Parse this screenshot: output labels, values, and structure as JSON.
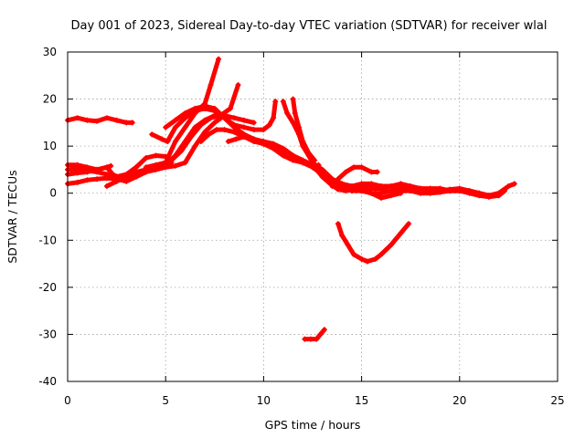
{
  "chart_data": {
    "type": "scatter",
    "title": "Day 001 of 2023, Sidereal Day-to-day VTEC variation (SDTVAR) for receiver wlal",
    "xlabel": "GPS time / hours",
    "ylabel": "SDTVAR / TECUs",
    "xlim": [
      0,
      25
    ],
    "ylim": [
      -40,
      30
    ],
    "xticks": [
      0,
      5,
      10,
      15,
      20,
      25
    ],
    "yticks": [
      -40,
      -30,
      -20,
      -10,
      0,
      10,
      20,
      30
    ],
    "grid": true,
    "legend": "none",
    "color": "#ff0000",
    "series": [
      {
        "name": "s01",
        "points": [
          [
            0.0,
            15.5
          ],
          [
            0.5,
            16.0
          ],
          [
            1.0,
            15.5
          ],
          [
            1.5,
            15.3
          ],
          [
            2.0,
            16.0
          ],
          [
            2.5,
            15.5
          ],
          [
            3.0,
            15.0
          ],
          [
            3.3,
            15.0
          ]
        ]
      },
      {
        "name": "s02",
        "points": [
          [
            0.0,
            6.0
          ],
          [
            0.5,
            6.0
          ],
          [
            1.0,
            5.5
          ],
          [
            1.5,
            5.0
          ],
          [
            2.0,
            5.5
          ],
          [
            2.3,
            4.0
          ],
          [
            2.8,
            3.0
          ],
          [
            3.3,
            3.5
          ],
          [
            3.8,
            4.5
          ],
          [
            4.3,
            5.5
          ],
          [
            4.8,
            6.0
          ],
          [
            5.3,
            6.5
          ]
        ]
      },
      {
        "name": "s03",
        "points": [
          [
            0.0,
            5.0
          ],
          [
            0.5,
            5.2
          ],
          [
            1.0,
            4.8
          ],
          [
            1.5,
            4.5
          ],
          [
            2.0,
            4.0
          ],
          [
            2.5,
            3.5
          ],
          [
            3.0,
            4.0
          ],
          [
            3.5,
            5.5
          ],
          [
            4.0,
            7.5
          ],
          [
            4.5,
            8.0
          ],
          [
            5.0,
            7.8
          ]
        ]
      },
      {
        "name": "s04",
        "points": [
          [
            0.0,
            4.0
          ],
          [
            0.5,
            4.3
          ],
          [
            1.0,
            4.5
          ],
          [
            1.5,
            5.0
          ],
          [
            2.0,
            5.5
          ],
          [
            2.2,
            5.8
          ]
        ]
      },
      {
        "name": "s05",
        "points": [
          [
            0.0,
            2.0
          ],
          [
            0.5,
            2.3
          ],
          [
            1.0,
            2.8
          ],
          [
            1.5,
            3.0
          ],
          [
            2.0,
            3.2
          ],
          [
            2.5,
            3.0
          ],
          [
            3.0,
            2.5
          ],
          [
            3.5,
            3.5
          ],
          [
            4.0,
            4.5
          ],
          [
            4.5,
            5.0
          ],
          [
            5.0,
            5.5
          ],
          [
            5.5,
            5.8
          ],
          [
            6.0,
            6.5
          ],
          [
            6.5,
            10.0
          ],
          [
            7.0,
            13.0
          ],
          [
            7.5,
            15.0
          ],
          [
            8.0,
            16.5
          ],
          [
            8.5,
            16.0
          ],
          [
            9.0,
            15.5
          ],
          [
            9.5,
            15.0
          ]
        ]
      },
      {
        "name": "s06",
        "points": [
          [
            2.0,
            1.5
          ],
          [
            2.5,
            2.5
          ],
          [
            3.0,
            3.5
          ],
          [
            3.5,
            4.5
          ],
          [
            4.0,
            5.0
          ],
          [
            4.5,
            5.3
          ],
          [
            5.0,
            6.0
          ],
          [
            5.5,
            8.0
          ],
          [
            6.0,
            11.0
          ],
          [
            6.5,
            14.0
          ],
          [
            7.0,
            15.5
          ],
          [
            7.5,
            16.5
          ]
        ]
      },
      {
        "name": "s07",
        "points": [
          [
            4.0,
            5.5
          ],
          [
            4.5,
            6.0
          ],
          [
            5.0,
            6.5
          ],
          [
            5.5,
            11.0
          ],
          [
            6.0,
            14.0
          ],
          [
            6.5,
            17.0
          ],
          [
            7.0,
            19.0
          ],
          [
            7.3,
            23.0
          ],
          [
            7.7,
            28.5
          ]
        ]
      },
      {
        "name": "s08",
        "points": [
          [
            5.3,
            7.0
          ],
          [
            5.8,
            9.0
          ],
          [
            6.3,
            12.0
          ],
          [
            6.8,
            14.5
          ],
          [
            7.3,
            16.0
          ],
          [
            7.8,
            16.5
          ],
          [
            8.3,
            18.0
          ],
          [
            8.7,
            23.0
          ]
        ]
      },
      {
        "name": "s09",
        "points": [
          [
            4.3,
            12.5
          ],
          [
            4.8,
            11.5
          ],
          [
            5.1,
            11.0
          ],
          [
            5.5,
            14.0
          ],
          [
            6.0,
            16.0
          ],
          [
            6.5,
            17.5
          ],
          [
            7.0,
            18.0
          ],
          [
            7.5,
            17.5
          ],
          [
            8.0,
            16.0
          ],
          [
            8.5,
            14.5
          ],
          [
            9.0,
            14.0
          ],
          [
            9.5,
            13.5
          ],
          [
            10.0,
            13.5
          ],
          [
            10.3,
            14.5
          ],
          [
            10.5,
            16.0
          ],
          [
            10.6,
            19.5
          ]
        ]
      },
      {
        "name": "s10",
        "points": [
          [
            5.0,
            14.0
          ],
          [
            5.5,
            15.5
          ],
          [
            6.0,
            17.0
          ],
          [
            6.5,
            18.0
          ],
          [
            7.0,
            18.5
          ],
          [
            7.5,
            18.0
          ],
          [
            8.0,
            16.0
          ],
          [
            8.5,
            14.0
          ],
          [
            9.0,
            12.5
          ],
          [
            9.5,
            11.5
          ],
          [
            10.0,
            11.0
          ],
          [
            10.5,
            10.5
          ],
          [
            11.0,
            9.5
          ],
          [
            11.5,
            8.0
          ],
          [
            12.0,
            6.5
          ],
          [
            12.5,
            5.5
          ],
          [
            13.0,
            4.0
          ],
          [
            13.5,
            2.5
          ],
          [
            14.0,
            1.5
          ],
          [
            14.5,
            1.5
          ],
          [
            15.0,
            2.0
          ],
          [
            15.5,
            2.0
          ],
          [
            16.0,
            1.5
          ],
          [
            16.5,
            1.5
          ],
          [
            17.0,
            1.0
          ],
          [
            17.5,
            1.2
          ],
          [
            18.0,
            1.0
          ],
          [
            18.5,
            0.8
          ],
          [
            19.0,
            0.5
          ],
          [
            19.5,
            0.8
          ],
          [
            20.0,
            1.0
          ],
          [
            20.5,
            0.5
          ],
          [
            21.0,
            0.0
          ],
          [
            21.5,
            -0.5
          ],
          [
            22.0,
            0.0
          ],
          [
            22.5,
            1.5
          ],
          [
            22.8,
            2.0
          ]
        ]
      },
      {
        "name": "s11",
        "points": [
          [
            6.8,
            11.0
          ],
          [
            7.2,
            12.5
          ],
          [
            7.6,
            13.5
          ],
          [
            8.0,
            13.5
          ],
          [
            8.5,
            13.0
          ],
          [
            9.0,
            12.0
          ],
          [
            9.5,
            11.0
          ],
          [
            10.0,
            10.5
          ],
          [
            10.5,
            10.0
          ],
          [
            11.0,
            9.0
          ],
          [
            11.5,
            8.0
          ],
          [
            12.0,
            7.0
          ],
          [
            12.5,
            6.0
          ],
          [
            13.0,
            3.5
          ],
          [
            13.5,
            2.0
          ],
          [
            14.0,
            1.0
          ],
          [
            14.5,
            0.5
          ],
          [
            15.0,
            0.5
          ],
          [
            15.5,
            0.0
          ],
          [
            16.0,
            0.0
          ],
          [
            16.5,
            0.5
          ],
          [
            17.0,
            0.5
          ],
          [
            17.5,
            0.5
          ],
          [
            18.0,
            0.0
          ],
          [
            18.5,
            0.0
          ],
          [
            19.0,
            0.2
          ],
          [
            19.5,
            0.5
          ],
          [
            20.0,
            0.5
          ],
          [
            20.5,
            0.0
          ],
          [
            21.0,
            -0.5
          ],
          [
            21.5,
            -0.8
          ],
          [
            22.0,
            -0.5
          ],
          [
            22.3,
            0.5
          ]
        ]
      },
      {
        "name": "s12",
        "points": [
          [
            8.2,
            11.0
          ],
          [
            8.6,
            11.5
          ],
          [
            9.0,
            12.0
          ],
          [
            9.5,
            11.5
          ],
          [
            10.0,
            10.5
          ],
          [
            10.5,
            9.5
          ],
          [
            11.0,
            8.0
          ],
          [
            11.5,
            7.0
          ],
          [
            12.0,
            6.5
          ],
          [
            12.5,
            6.0
          ],
          [
            13.0,
            5.0
          ],
          [
            13.5,
            3.0
          ],
          [
            14.0,
            2.0
          ],
          [
            14.5,
            1.5
          ],
          [
            15.0,
            1.0
          ],
          [
            15.5,
            1.0
          ],
          [
            16.0,
            1.0
          ],
          [
            16.5,
            1.5
          ],
          [
            17.0,
            2.0
          ],
          [
            17.5,
            1.5
          ],
          [
            18.0,
            1.0
          ],
          [
            18.5,
            1.0
          ],
          [
            19.0,
            1.0
          ],
          [
            19.5,
            0.5
          ],
          [
            20.0,
            0.5
          ],
          [
            20.5,
            0.5
          ],
          [
            21.0,
            0.0
          ],
          [
            21.5,
            -0.5
          ],
          [
            22.0,
            0.0
          ]
        ]
      },
      {
        "name": "s13",
        "points": [
          [
            11.0,
            19.5
          ],
          [
            11.2,
            17.0
          ],
          [
            11.5,
            15.0
          ],
          [
            11.8,
            12.5
          ],
          [
            12.0,
            10.0
          ],
          [
            12.3,
            8.0
          ],
          [
            12.5,
            6.5
          ],
          [
            12.8,
            5.5
          ]
        ]
      },
      {
        "name": "s14",
        "points": [
          [
            11.5,
            20.0
          ],
          [
            11.6,
            17.0
          ],
          [
            11.8,
            14.0
          ],
          [
            12.0,
            11.0
          ],
          [
            12.3,
            8.5
          ],
          [
            12.6,
            7.0
          ]
        ]
      },
      {
        "name": "s15",
        "points": [
          [
            12.8,
            6.0
          ],
          [
            13.0,
            4.0
          ],
          [
            13.3,
            3.0
          ],
          [
            13.5,
            2.0
          ],
          [
            14.0,
            1.0
          ],
          [
            14.5,
            1.5
          ],
          [
            15.0,
            0.5
          ],
          [
            15.5,
            0.0
          ],
          [
            16.0,
            -1.0
          ],
          [
            16.5,
            -0.5
          ],
          [
            17.0,
            0.0
          ]
        ]
      },
      {
        "name": "s16",
        "points": [
          [
            13.0,
            3.5
          ],
          [
            13.4,
            2.0
          ],
          [
            13.8,
            0.8
          ],
          [
            14.2,
            0.5
          ],
          [
            14.7,
            1.0
          ],
          [
            15.2,
            1.2
          ],
          [
            15.7,
            1.0
          ],
          [
            16.2,
            1.0
          ]
        ]
      },
      {
        "name": "s17",
        "points": [
          [
            13.5,
            1.5
          ],
          [
            13.8,
            3.0
          ],
          [
            14.2,
            4.5
          ],
          [
            14.6,
            5.5
          ],
          [
            15.0,
            5.5
          ],
          [
            15.5,
            4.5
          ],
          [
            15.8,
            4.5
          ]
        ]
      },
      {
        "name": "s18",
        "points": [
          [
            13.8,
            -6.5
          ],
          [
            14.0,
            -9.0
          ],
          [
            14.3,
            -11.0
          ],
          [
            14.6,
            -13.0
          ],
          [
            15.0,
            -14.0
          ],
          [
            15.3,
            -14.5
          ],
          [
            15.7,
            -14.0
          ],
          [
            16.0,
            -13.0
          ],
          [
            16.5,
            -11.0
          ],
          [
            17.0,
            -8.5
          ],
          [
            17.4,
            -6.5
          ]
        ]
      },
      {
        "name": "s19",
        "points": [
          [
            12.1,
            -31.0
          ],
          [
            12.4,
            -31.0
          ],
          [
            12.7,
            -31.0
          ],
          [
            12.9,
            -30.0
          ],
          [
            13.1,
            -29.0
          ]
        ]
      }
    ]
  }
}
